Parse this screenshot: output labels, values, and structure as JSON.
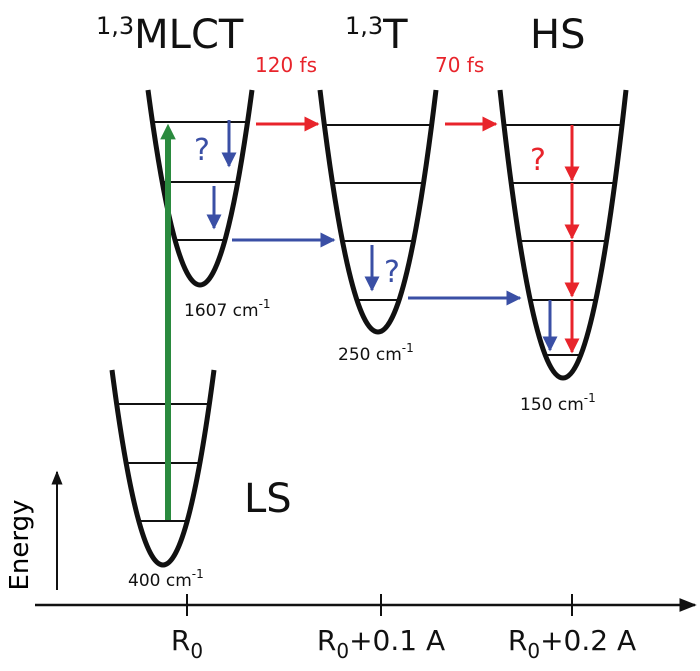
{
  "states": [
    {
      "prefix": "1,3",
      "label": "MLCT",
      "frequency": {
        "text": "1607 cm",
        "exponent": "-1"
      }
    },
    {
      "prefix": "1,3",
      "label": "T",
      "frequency": {
        "text": "250 cm",
        "exponent": "-1"
      }
    },
    {
      "label": "HS",
      "frequency": {
        "text": "150 cm",
        "exponent": "-1"
      }
    },
    {
      "label": "LS",
      "frequency": {
        "text": "400 cm",
        "exponent": "-1"
      }
    }
  ],
  "transitions": [
    {
      "label": "120 fs"
    },
    {
      "label": "70 fs"
    }
  ],
  "unknown_marks": [
    "?",
    "?",
    "?"
  ],
  "axes": {
    "y_label": "Energy",
    "x_ticks": [
      {
        "base": "R",
        "subscript": "0"
      },
      {
        "base": "R",
        "subscript": "0",
        "suffix": "+0.1 A"
      },
      {
        "base": "R",
        "subscript": "0",
        "suffix": "+0.2 A"
      }
    ]
  }
}
